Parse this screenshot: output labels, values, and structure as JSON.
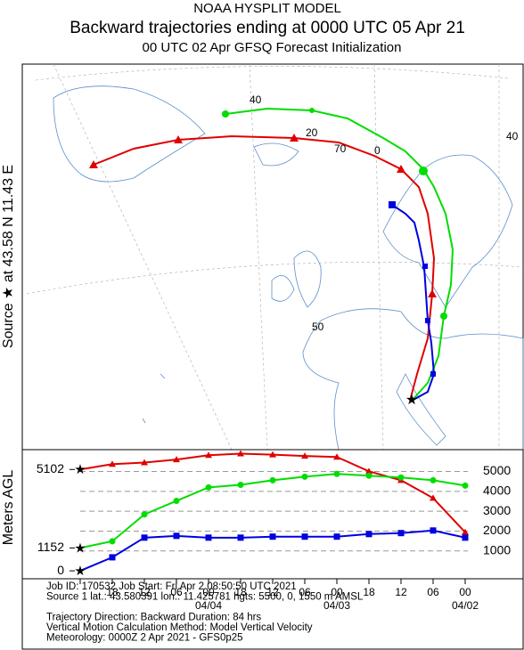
{
  "header": {
    "model": "NOAA HYSPLIT MODEL",
    "title": "Backward trajectories ending at 0000 UTC 05 Apr 21",
    "subtitle": "00 UTC 02 Apr    GFSQ  Forecast Initialization"
  },
  "map": {
    "source_label": "Source ★ at   43.58 N   11.43 E",
    "grid_labels": [
      "40",
      "20",
      "70",
      "0",
      "40",
      "50"
    ]
  },
  "chart_data": {
    "type": "line",
    "y_label": "Meters AGL",
    "categories": [
      null,
      "18",
      "12",
      "06",
      "00",
      "18",
      "12",
      "06",
      "00",
      "18",
      "12",
      "06",
      "00"
    ],
    "date_labels": [
      {
        "index": 4,
        "label": "04/04"
      },
      {
        "index": 8,
        "label": "04/03"
      },
      {
        "index": 12,
        "label": "04/02"
      }
    ],
    "ylim": [
      -400,
      6100
    ],
    "yticks": [
      0,
      1152,
      5102
    ],
    "y2lim": [
      -400,
      6100
    ],
    "y2ticks": [
      1000,
      2000,
      3000,
      4000,
      5000
    ],
    "series": [
      {
        "color": "#e00000",
        "marker": "triangle",
        "values": [
          5102,
          5370,
          5450,
          5600,
          5820,
          5900,
          5850,
          5780,
          5730,
          5010,
          4560,
          3660,
          1940
        ]
      },
      {
        "color": "#00dd00",
        "marker": "circle",
        "values": [
          1152,
          1490,
          2840,
          3520,
          4200,
          4330,
          4560,
          4740,
          4880,
          4790,
          4700,
          4560,
          4290
        ]
      },
      {
        "color": "#0000e0",
        "marker": "square",
        "values": [
          0,
          680,
          1670,
          1760,
          1670,
          1670,
          1720,
          1720,
          1720,
          1850,
          1900,
          2030,
          1670
        ]
      }
    ]
  },
  "info": [
    "Job ID: 170532                          Job Start: Fri Apr  2 08:50:50 UTC 2021",
    "Source 1 lat.: 43.580391  lon.: 11.425781  hgts: 5500, 0, 1550 m AMSL",
    "",
    "Trajectory Direction: Backward      Duration: 84 hrs",
    "Vertical Motion Calculation Method:       Model Vertical Velocity",
    "Meteorology: 0000Z  2 Apr 2021 - GFS0p25"
  ]
}
